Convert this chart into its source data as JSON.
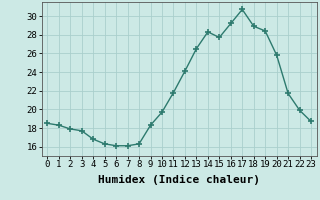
{
  "x": [
    0,
    1,
    2,
    3,
    4,
    5,
    6,
    7,
    8,
    9,
    10,
    11,
    12,
    13,
    14,
    15,
    16,
    17,
    18,
    19,
    20,
    21,
    22,
    23
  ],
  "y": [
    18.5,
    18.3,
    17.9,
    17.7,
    16.8,
    16.3,
    16.1,
    16.1,
    16.3,
    18.3,
    19.7,
    21.8,
    24.1,
    26.5,
    28.3,
    27.7,
    29.2,
    30.7,
    28.9,
    28.4,
    25.8,
    21.7,
    19.9,
    18.7
  ],
  "xlabel": "Humidex (Indice chaleur)",
  "ylim": [
    15.0,
    31.5
  ],
  "xlim": [
    -0.5,
    23.5
  ],
  "yticks": [
    16,
    18,
    20,
    22,
    24,
    26,
    28,
    30
  ],
  "xticks": [
    0,
    1,
    2,
    3,
    4,
    5,
    6,
    7,
    8,
    9,
    10,
    11,
    12,
    13,
    14,
    15,
    16,
    17,
    18,
    19,
    20,
    21,
    22,
    23
  ],
  "line_color": "#2d7a6e",
  "marker": "+",
  "marker_size": 4,
  "bg_color": "#cce9e5",
  "grid_color": "#aacfcc",
  "tick_fontsize": 6.5,
  "xlabel_fontsize": 8
}
